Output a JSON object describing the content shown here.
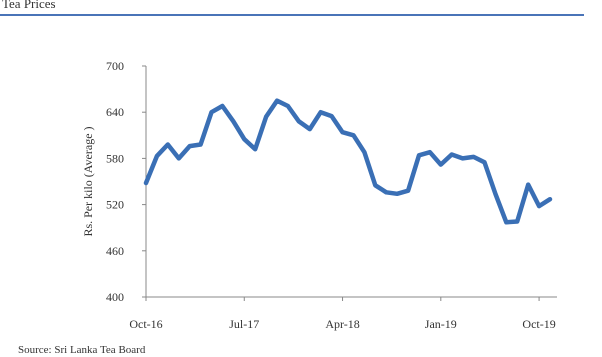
{
  "header": {
    "text": "Tea Prices"
  },
  "source": {
    "text": "Source: Sri Lanka Tea Board"
  },
  "chart_data": {
    "type": "line",
    "title": "",
    "ylabel": "Rs. Per kilo (Average )",
    "xlabel": "",
    "ylim": [
      400,
      700
    ],
    "yticks": [
      400,
      460,
      520,
      580,
      640,
      700
    ],
    "x_tick_labels": [
      "Oct-16",
      "Jul-17",
      "Apr-18",
      "Jan-19",
      "Oct-19"
    ],
    "x_tick_index": [
      0,
      9,
      18,
      27,
      36
    ],
    "line_color": "#3a6fb5",
    "grid": false,
    "series": [
      {
        "values": [
          548,
          583,
          598,
          580,
          596,
          598,
          640,
          648,
          628,
          605,
          592,
          634,
          655,
          648,
          628,
          618,
          640,
          635,
          614,
          610,
          588,
          545,
          536,
          534,
          538,
          584,
          588,
          572,
          585,
          580,
          582,
          575,
          534,
          497,
          498,
          546,
          518,
          527
        ]
      }
    ]
  }
}
